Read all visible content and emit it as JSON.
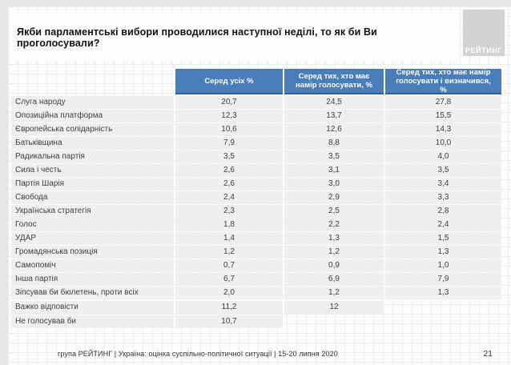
{
  "slide": {
    "logo_text": "РЕЙТИНГ",
    "footer": "група РЕЙТИНГ |  Україна: оцінка суспільно-політичної  ситуації  | 15-20 липня  2020",
    "page_number": "21"
  },
  "chart_data": {
    "type": "table",
    "title": "Якби парламентські вибори проводилися наступної неділі, то як би Ви проголосували?",
    "columns": [
      "Серед усіх %",
      "Серед тих, хто має намір голосувати, %",
      "Серед тих, хто має намір голосувати і визначився, %"
    ],
    "rows": [
      {
        "label": "Слуга народу",
        "values": [
          "20,7",
          "24,5",
          "27,8"
        ]
      },
      {
        "label": "Опозиційна платформа",
        "values": [
          "12,3",
          "13,7",
          "15,5"
        ]
      },
      {
        "label": "Європейська солідарність",
        "values": [
          "10,6",
          "12,6",
          "14,3"
        ]
      },
      {
        "label": "Батьківщина",
        "values": [
          "7,9",
          "8,8",
          "10,0"
        ]
      },
      {
        "label": "Радикальна партія",
        "values": [
          "3,5",
          "3,5",
          "4,0"
        ]
      },
      {
        "label": "Сила і честь",
        "values": [
          "2,6",
          "3,1",
          "3,5"
        ]
      },
      {
        "label": "Партія Шарія",
        "values": [
          "2,6",
          "3,0",
          "3,4"
        ]
      },
      {
        "label": "Свобода",
        "values": [
          "2,4",
          "2,9",
          "3,3"
        ]
      },
      {
        "label": "Українська стратегія",
        "values": [
          "2,3",
          "2,5",
          "2,8"
        ]
      },
      {
        "label": "Голос",
        "values": [
          "1,8",
          "2,2",
          "2,4"
        ]
      },
      {
        "label": "УДАР",
        "values": [
          "1,4",
          "1,3",
          "1,5"
        ]
      },
      {
        "label": "Громадянська позиція",
        "values": [
          "1,2",
          "1,2",
          "1,3"
        ]
      },
      {
        "label": "Самопоміч",
        "values": [
          "0,7",
          "0,9",
          "1,0"
        ]
      },
      {
        "label": "Інша партія",
        "values": [
          "6,7",
          "6,9",
          "7,9"
        ]
      },
      {
        "label": "Зіпсував би бюлетень, проти всіх",
        "values": [
          "2,0",
          "1,2",
          "1,3"
        ]
      },
      {
        "label": "Важко відповісти",
        "values": [
          "11,2",
          "12",
          null
        ]
      },
      {
        "label": "Не голосував би",
        "values": [
          "10,7",
          null,
          null
        ]
      }
    ],
    "colors": {
      "header_bg": "#4a7ebb",
      "header_border": "#34618f",
      "row_bg": "#efefef",
      "logo_bg": "#d2d2d2"
    }
  }
}
